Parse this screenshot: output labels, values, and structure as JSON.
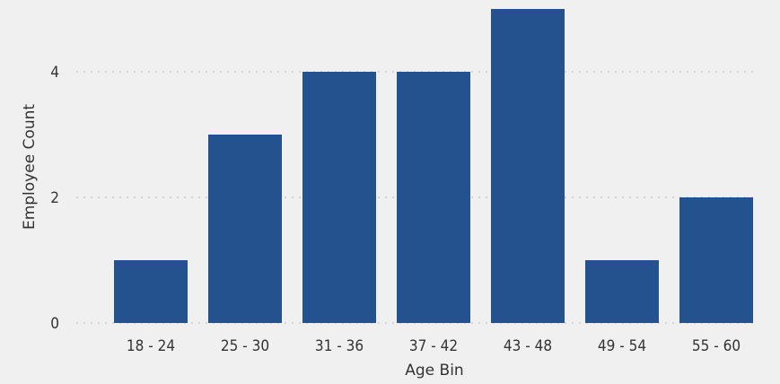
{
  "chart_data": {
    "type": "bar",
    "xlabel": "Age Bin",
    "ylabel": "Employee Count",
    "categories": [
      "18 - 24",
      "25 - 30",
      "31 - 36",
      "37 - 42",
      "43 - 48",
      "49 - 54",
      "55 - 60"
    ],
    "values": [
      1,
      3,
      4,
      4,
      5,
      1,
      2
    ],
    "ylim": [
      0,
      5
    ],
    "yticks": [
      0,
      2,
      4
    ],
    "ytick_labels": [
      "0",
      "2",
      "4"
    ],
    "grid": "horizontal dotted",
    "bar_color": "#24528f",
    "grid_color": "#c8c8c8"
  }
}
